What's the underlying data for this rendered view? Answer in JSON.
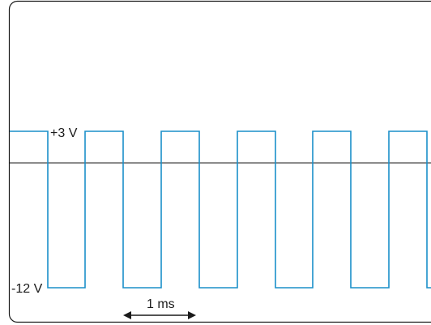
{
  "diagram": {
    "type": "square-wave",
    "high_label": "+3 V",
    "low_label": "-12 V",
    "period_label": "1 ms",
    "high_level_volts": 3,
    "low_level_volts": -12,
    "colors": {
      "waveform": "#1a8fc9",
      "axis": "#1a1a1a",
      "frame": "#1a1a1a",
      "text": "#1a1a1a"
    }
  }
}
